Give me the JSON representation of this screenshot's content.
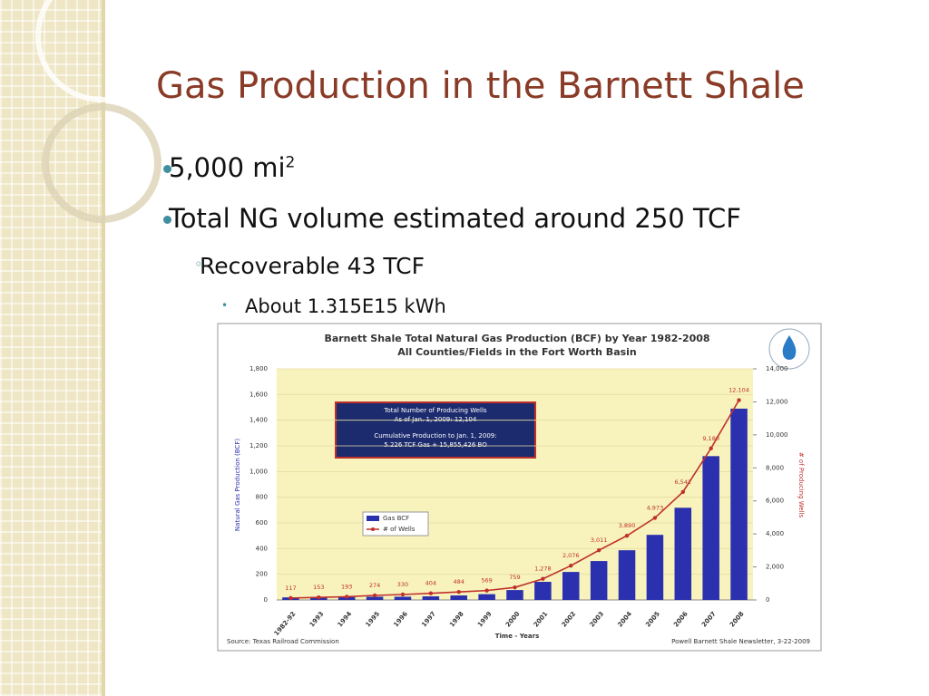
{
  "slide": {
    "title": "Gas Production in the Barnett Shale",
    "bullets": [
      {
        "text": "5,000 mi",
        "sup": "2"
      },
      {
        "text": "Total NG volume estimated around 250 TCF"
      }
    ],
    "sub_bullet": "Recoverable 43 TCF",
    "sub_sub_bullet": "About 1.315E15 kWh"
  },
  "chart_data": {
    "type": "bar",
    "title": "Barnett Shale Total Natural Gas Production (BCF) by Year 1982-2008",
    "subtitle": "All Counties/Fields in the Fort Worth Basin",
    "xlabel": "Time - Years",
    "ylabel": "Natural Gas Production (BCF)",
    "y2label": "# of Producing Wells",
    "source": "Source: Texas Railroad Commission",
    "credit": "Powell Barnett Shale Newsletter, 3-22-2009",
    "annotation": [
      "Total Number of Producing Wells",
      "As of Jan. 1, 2009: 12,104",
      "Cumulative Production to Jan. 1, 2009:",
      "5.226 TCF Gas + 15,855,426  BO"
    ],
    "categories": [
      "1982-92",
      "1993",
      "1994",
      "1995",
      "1996",
      "1997",
      "1998",
      "1999",
      "2000",
      "2001",
      "2002",
      "2003",
      "2004",
      "2005",
      "2006",
      "2007",
      "2008"
    ],
    "series": [
      {
        "name": "Gas BCF",
        "type": "bar",
        "color": "#2b30ae",
        "values": [
          20,
          20,
          22,
          25,
          25,
          28,
          35,
          45,
          77,
          141,
          218,
          303,
          387,
          507,
          718,
          1120,
          1490
        ]
      },
      {
        "name": "# of Wells",
        "type": "line",
        "axis": "y2",
        "color": "#c0302b",
        "values": [
          117,
          153,
          193,
          274,
          330,
          404,
          484,
          569,
          759,
          1278,
          2076,
          3011,
          3890,
          4973,
          6542,
          9180,
          12104
        ],
        "value_labels": [
          "117",
          "153",
          "193",
          "274",
          "330",
          "404",
          "484",
          "569",
          "759",
          "1,278",
          "2,076",
          "3,011",
          "3,890",
          "4,973",
          "6,542",
          "9,180",
          "12,104"
        ]
      }
    ],
    "ylim": [
      0,
      1800
    ],
    "yticks": [
      0,
      200,
      400,
      600,
      800,
      {
        "value": 1000,
        "label": "1,000"
      },
      {
        "value": 1200,
        "label": "1,200"
      },
      {
        "value": 1400,
        "label": "1,400"
      },
      {
        "value": 1600,
        "label": "1,600"
      },
      {
        "value": 1800,
        "label": "1,800"
      }
    ],
    "y2lim": [
      0,
      14000
    ],
    "y2ticks": [
      0,
      {
        "value": 2000,
        "label": "2,000"
      },
      {
        "value": 4000,
        "label": "4,000"
      },
      {
        "value": 6000,
        "label": "6,000"
      },
      {
        "value": 8000,
        "label": "8,000"
      },
      {
        "value": 10000,
        "label": "10,000"
      },
      {
        "value": 12000,
        "label": "12,000"
      },
      {
        "value": 14000,
        "label": "14,000"
      }
    ],
    "grid": true,
    "legend": "left"
  }
}
